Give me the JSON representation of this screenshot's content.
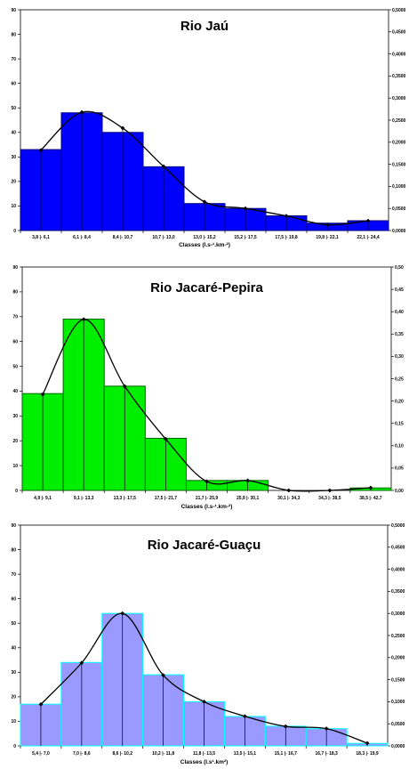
{
  "chart_data": [
    {
      "type": "bar",
      "title": "Rio Jaú",
      "xlabel": "Classes (l.s-¹.km-²)",
      "categories": [
        "3,8 |- 6,1",
        "6,1 |- 8,4",
        "8,4 |- 10,7",
        "10,7 |- 13,0",
        "13,0 |- 15,2",
        "15,2 |- 17,5",
        "17,5 |- 19,8",
        "19,8 |- 22,1",
        "22,1 |- 24,4"
      ],
      "values": [
        33,
        48,
        40,
        26,
        11,
        9,
        6,
        3,
        4
      ],
      "curve": [
        0.182,
        0.268,
        0.232,
        0.145,
        0.065,
        0.05,
        0.033,
        0.013,
        0.022
      ],
      "ylim": [
        0,
        90
      ],
      "y_ticks": [
        "0",
        "10",
        "20",
        "30",
        "40",
        "50",
        "60",
        "70",
        "80",
        "90"
      ],
      "y2lim": [
        0,
        0.5
      ],
      "y2_ticks": [
        "0,0000",
        "0,0500",
        "0,1000",
        "0,1500",
        "0,2000",
        "0,2500",
        "0,3000",
        "0,3500",
        "0,4000",
        "0,4500",
        "0,5000"
      ],
      "bar_color": "#0000ff",
      "bar_edge": "#00007f"
    },
    {
      "type": "bar",
      "title": "Rio Jacaré-Pepira",
      "xlabel": "Classes (l.s-¹.km-²)",
      "categories": [
        "4,9 |- 9,1",
        "9,1 |- 13,3",
        "13,3 |- 17,5",
        "17,5 |- 21,7",
        "21,7 |- 25,9",
        "25,9 |- 30,1",
        "30,1 |- 34,3",
        "34,3 |- 38,5",
        "38,5 |- 42,7"
      ],
      "values": [
        39,
        69,
        42,
        21,
        4,
        4,
        0,
        0,
        1
      ],
      "curve": [
        0.215,
        0.383,
        0.233,
        0.115,
        0.02,
        0.022,
        0.0,
        0.0,
        0.006
      ],
      "ylim": [
        0,
        90
      ],
      "y_ticks": [
        "0",
        "10",
        "20",
        "30",
        "40",
        "50",
        "60",
        "70",
        "80",
        "90"
      ],
      "y2lim": [
        0,
        0.5
      ],
      "y2_ticks": [
        "0,00",
        "0,05",
        "0,10",
        "0,15",
        "0,20",
        "0,25",
        "0,30",
        "0,35",
        "0,40",
        "0,45",
        "0,50"
      ],
      "bar_color": "#00ee00",
      "bar_edge": "#006600"
    },
    {
      "type": "bar",
      "title": "Rio Jacaré-Guaçu",
      "xlabel": "Classes (l.s¹.km²)",
      "categories": [
        "5,4 |- 7,0",
        "7,0 |- 8,6",
        "8,6 |- 10,2",
        "10,2 |- 11,8",
        "11,8 |- 13,5",
        "13,5 |- 15,1",
        "15,1 |- 16,7",
        "16,7 |- 18,3",
        "18,3 |- 19,9"
      ],
      "values": [
        17,
        34,
        54,
        29,
        18,
        12,
        8,
        7,
        1
      ],
      "curve": [
        0.094,
        0.188,
        0.3,
        0.16,
        0.1,
        0.067,
        0.044,
        0.039,
        0.006
      ],
      "ylim": [
        0,
        90
      ],
      "y_ticks": [
        "0",
        "10",
        "20",
        "30",
        "40",
        "50",
        "60",
        "70",
        "80",
        "90"
      ],
      "y2lim": [
        0,
        0.5
      ],
      "y2_ticks": [
        "0,0000",
        "0,0500",
        "0,1000",
        "0,1500",
        "0,2000",
        "0,2500",
        "0,3000",
        "0,3500",
        "0,4000",
        "0,4500",
        "0,5000"
      ],
      "bar_color": "#9999ff",
      "bar_edge": "#00ffff"
    }
  ]
}
